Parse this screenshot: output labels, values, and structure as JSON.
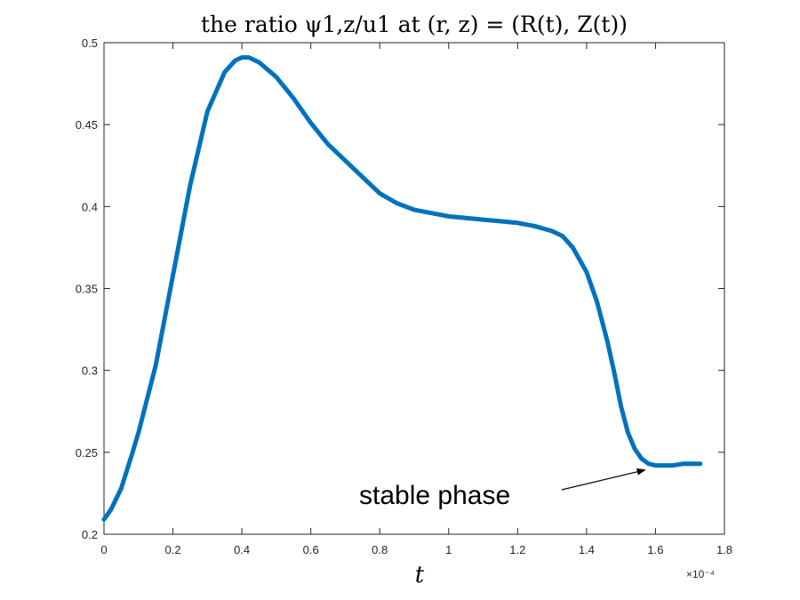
{
  "chart_data": {
    "type": "line",
    "title": "the ratio ψ1,z/u1 at (r, z) = (R(t), Z(t))",
    "xlabel": "t",
    "ylabel": "",
    "x_exponent_label": "×10⁻⁴",
    "xlim": [
      0,
      1.8
    ],
    "ylim": [
      0.2,
      0.5
    ],
    "x_ticks": [
      "0",
      "0.2",
      "0.4",
      "0.6",
      "0.8",
      "1",
      "1.2",
      "1.4",
      "1.6",
      "1.8"
    ],
    "y_ticks": [
      "0.2",
      "0.25",
      "0.3",
      "0.35",
      "0.4",
      "0.45",
      "0.5"
    ],
    "grid": false,
    "line_color": "#0072BD",
    "series": [
      {
        "x": [
          0.0,
          0.02,
          0.05,
          0.08,
          0.1,
          0.15,
          0.2,
          0.25,
          0.3,
          0.35,
          0.38,
          0.4,
          0.42,
          0.45,
          0.5,
          0.55,
          0.6,
          0.65,
          0.7,
          0.75,
          0.8,
          0.85,
          0.9,
          0.95,
          1.0,
          1.05,
          1.1,
          1.15,
          1.2,
          1.25,
          1.3,
          1.33,
          1.36,
          1.4,
          1.43,
          1.46,
          1.48,
          1.5,
          1.52,
          1.54,
          1.56,
          1.58,
          1.6,
          1.62,
          1.65,
          1.68,
          1.7,
          1.73
        ],
        "y": [
          0.209,
          0.215,
          0.228,
          0.248,
          0.262,
          0.303,
          0.358,
          0.413,
          0.458,
          0.482,
          0.489,
          0.491,
          0.491,
          0.488,
          0.479,
          0.466,
          0.451,
          0.438,
          0.428,
          0.418,
          0.408,
          0.402,
          0.398,
          0.396,
          0.394,
          0.393,
          0.392,
          0.391,
          0.39,
          0.388,
          0.385,
          0.382,
          0.375,
          0.36,
          0.342,
          0.318,
          0.299,
          0.278,
          0.262,
          0.252,
          0.246,
          0.243,
          0.242,
          0.242,
          0.242,
          0.243,
          0.243,
          0.243
        ]
      }
    ],
    "annotation": {
      "text": "stable phase",
      "point_x": 1.58,
      "point_y": 0.2425
    }
  }
}
